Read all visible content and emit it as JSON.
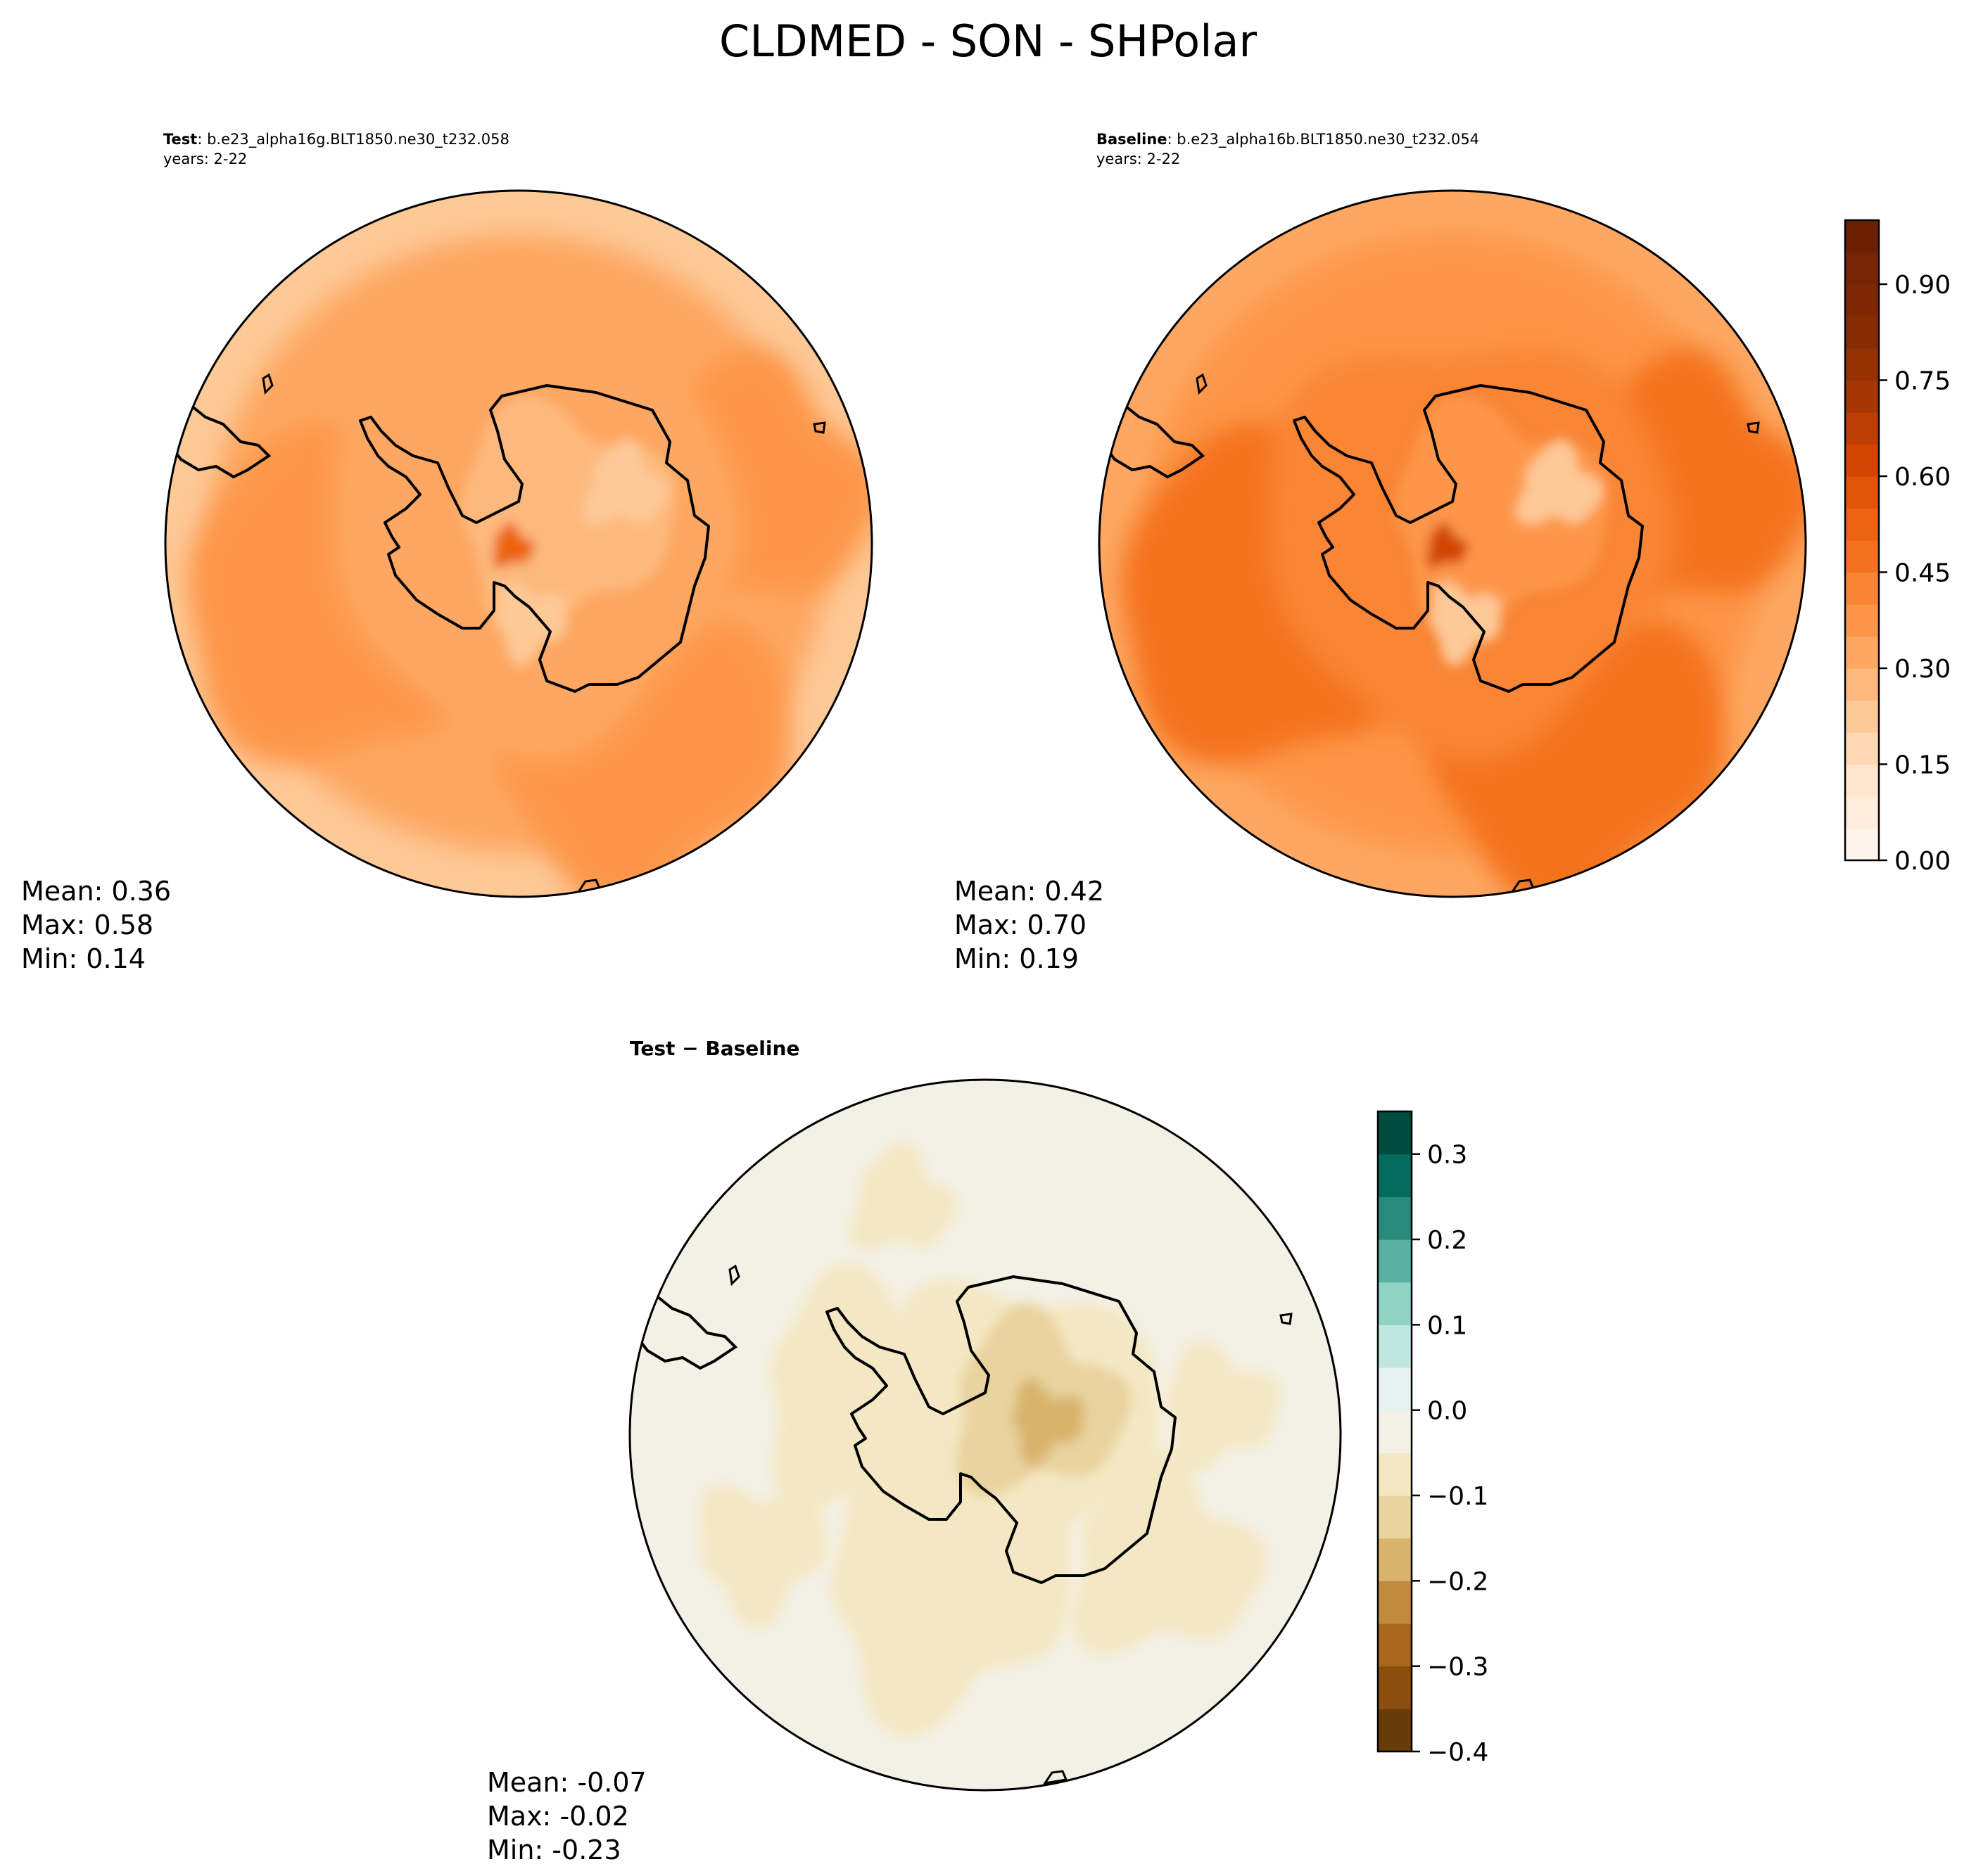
{
  "figure": {
    "title": "CLDMED - SON - SHPolar"
  },
  "chart_data": [
    {
      "type": "heatmap",
      "panel": "test",
      "projection": "south-polar-stereographic",
      "label_bold": "Test",
      "label_rest": ": b.e23_alpha16g.BLT1850.ne30_t232.058",
      "years": "years: 2-22",
      "stats": {
        "mean": "Mean:  0.36",
        "max": "Max:  0.58",
        "min": "Min:  0.14"
      },
      "values_summary": {
        "mean": 0.36,
        "max": 0.58,
        "min": 0.14
      },
      "field_levels": {
        "ocean_outer": 0.24,
        "ocean_ring": 0.32,
        "ocean_band": 0.38,
        "coast": 0.33,
        "interior": 0.27,
        "interior_low": 0.2,
        "hotspot": 0.5
      }
    },
    {
      "type": "heatmap",
      "panel": "baseline",
      "projection": "south-polar-stereographic",
      "label_bold": "Baseline",
      "label_rest": ": b.e23_alpha16b.BLT1850.ne30_t232.054",
      "years": "years: 2-22",
      "stats": {
        "mean": "Mean:  0.42",
        "max": "Max:  0.70",
        "min": "Min:  0.19"
      },
      "values_summary": {
        "mean": 0.42,
        "max": 0.7,
        "min": 0.19
      },
      "field_levels": {
        "ocean_outer": 0.3,
        "ocean_ring": 0.39,
        "ocean_band": 0.45,
        "coast": 0.41,
        "interior": 0.36,
        "interior_low": 0.24,
        "hotspot": 0.62
      }
    },
    {
      "type": "heatmap",
      "panel": "difference",
      "projection": "south-polar-stereographic",
      "label": "Test − Baseline",
      "stats": {
        "mean": "Mean: -0.07",
        "max": "Max: -0.02",
        "min": "Min: -0.23"
      },
      "values_summary": {
        "mean": -0.07,
        "max": -0.02,
        "min": -0.23
      },
      "field_levels": {
        "ocean": -0.04,
        "ocean_patch": -0.07,
        "continent": -0.09,
        "continent_inner": -0.14,
        "continent_core": -0.2
      }
    }
  ],
  "colorbars": {
    "cldmed": {
      "levels": [
        0,
        0.05,
        0.1,
        0.15,
        0.2,
        0.25,
        0.3,
        0.35,
        0.4,
        0.45,
        0.5,
        0.55,
        0.6,
        0.65,
        0.7,
        0.75,
        0.8,
        0.85,
        0.9,
        0.95,
        1.0
      ],
      "colors": [
        "#fff5eb",
        "#feeddc",
        "#fee5cb",
        "#fdd8b2",
        "#fdc997",
        "#fdb97d",
        "#fda762",
        "#fd9649",
        "#f98534",
        "#f4721f",
        "#ec6311",
        "#e15407",
        "#d14501",
        "#bc3e02",
        "#a63603",
        "#953103",
        "#862c04",
        "#7f2704",
        "#762403",
        "#6b2003"
      ],
      "ticks": [
        0,
        0.15,
        0.3,
        0.45,
        0.6,
        0.75,
        0.9
      ],
      "tick_labels": [
        "0.00",
        "0.15",
        "0.30",
        "0.45",
        "0.60",
        "0.75",
        "0.90"
      ],
      "range": [
        0,
        1.0
      ]
    },
    "diff": {
      "levels": [
        -0.4,
        -0.35,
        -0.3,
        -0.25,
        -0.2,
        -0.15,
        -0.1,
        -0.05,
        0,
        0.05,
        0.1,
        0.15,
        0.2,
        0.25,
        0.3,
        0.35
      ],
      "colors": [
        "#683b0a",
        "#8a4f0d",
        "#a8661e",
        "#c18b3f",
        "#d8b36c",
        "#e9d39e",
        "#f4e8c4",
        "#f3f0e5",
        "#e5f2ef",
        "#c0e7df",
        "#8fd3c5",
        "#5ab1a1",
        "#2a8a7c",
        "#056b5f",
        "#004c3f"
      ],
      "ticks": [
        -0.4,
        -0.3,
        -0.2,
        -0.1,
        0.0,
        0.1,
        0.2,
        0.3
      ],
      "tick_labels": [
        "−0.4",
        "−0.3",
        "−0.2",
        "−0.1",
        "0.0",
        "0.1",
        "0.2",
        "0.3"
      ],
      "range": [
        -0.4,
        0.35
      ]
    }
  }
}
